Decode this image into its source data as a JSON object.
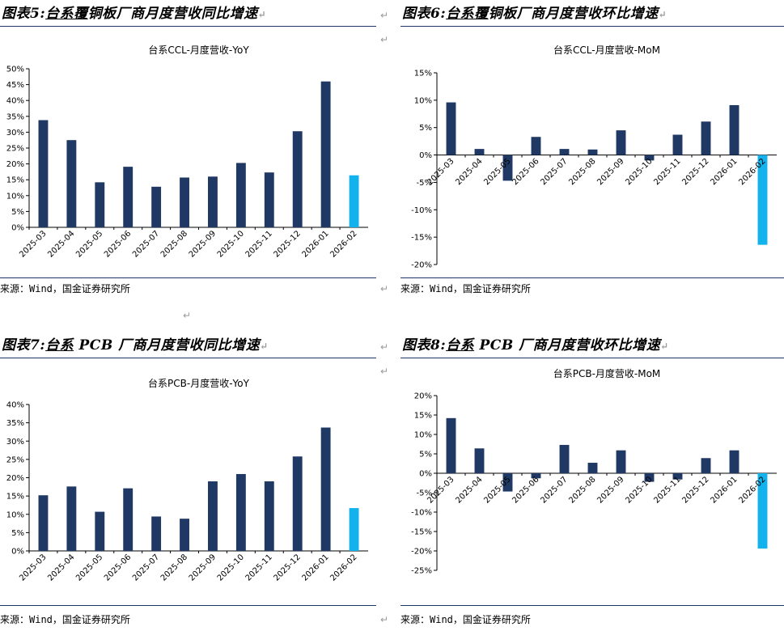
{
  "colors": {
    "bar": "#1f3864",
    "highlight": "#12b2ec",
    "rule": "#1f3864"
  },
  "return_mark": "↵",
  "panels": [
    {
      "title_prefix": "图表5:",
      "title_underlined": "台系覆",
      "title_rest": "铜板厂商月度营收同比增速",
      "source": "来源：Wind，国金证券研究所",
      "chart_data": {
        "type": "bar",
        "title": "台系CCL-月度营收-YoY",
        "categories": [
          "2025-03",
          "2025-04",
          "2025-05",
          "2025-06",
          "2025-07",
          "2025-08",
          "2025-09",
          "2025-10",
          "2025-11",
          "2025-12",
          "2026-01",
          "2026-02"
        ],
        "values": [
          33.8,
          27.5,
          14.2,
          19.1,
          12.8,
          15.7,
          16.0,
          20.3,
          17.3,
          30.3,
          46.0,
          16.4
        ],
        "ylim": [
          0,
          50
        ],
        "ytick_step": 5,
        "y_format": "percent",
        "highlight_index": 11,
        "grid": false
      }
    },
    {
      "title_prefix": "图表6:",
      "title_underlined": "台系覆",
      "title_rest": "铜板厂商月度营收环比增速",
      "source": "来源：Wind，国金证券研究所",
      "chart_data": {
        "type": "bar",
        "title": "台系CCL-月度营收-MoM",
        "categories": [
          "2025-03",
          "2025-04",
          "2025-05",
          "2025-06",
          "2025-07",
          "2025-08",
          "2025-09",
          "2025-10",
          "2025-11",
          "2025-12",
          "2026-01",
          "2026-02"
        ],
        "values": [
          9.6,
          1.1,
          -4.7,
          3.3,
          1.1,
          1.0,
          4.5,
          -1.0,
          3.7,
          6.1,
          9.1,
          -16.4
        ],
        "ylim": [
          -20,
          15
        ],
        "ytick_step": 5,
        "y_format": "percent",
        "highlight_index": 11,
        "grid": false
      }
    },
    {
      "title_prefix": "图表7:",
      "title_underlined": "台系",
      "title_rest": " PCB 厂商月度营收同比增速",
      "source": "来源：Wind，国金证券研究所",
      "chart_data": {
        "type": "bar",
        "title": "台系PCB-月度营收-YoY",
        "categories": [
          "2025-03",
          "2025-04",
          "2025-05",
          "2025-06",
          "2025-07",
          "2025-08",
          "2025-09",
          "2025-10",
          "2025-11",
          "2025-12",
          "2026-01",
          "2026-02"
        ],
        "values": [
          15.2,
          17.6,
          10.7,
          17.1,
          9.4,
          8.8,
          19.0,
          21.0,
          19.0,
          25.8,
          33.7,
          11.7
        ],
        "ylim": [
          0,
          40
        ],
        "ytick_step": 5,
        "y_format": "percent",
        "highlight_index": 11,
        "grid": false
      }
    },
    {
      "title_prefix": "图表8:",
      "title_underlined": "台系",
      "title_rest": " PCB 厂商月度营收环比增速",
      "source": "来源：Wind，国金证券研究所",
      "chart_data": {
        "type": "bar",
        "title": "台系PCB-月度营收-MoM",
        "categories": [
          "2025-03",
          "2025-04",
          "2025-05",
          "2025-06",
          "2025-07",
          "2025-08",
          "2025-09",
          "2025-10",
          "2025-11",
          "2025-12",
          "2026-01",
          "2026-02"
        ],
        "values": [
          14.2,
          6.4,
          -4.7,
          -1.3,
          7.3,
          2.7,
          5.9,
          -2.2,
          -1.6,
          3.9,
          5.9,
          -19.4
        ],
        "ylim": [
          -25,
          20
        ],
        "ytick_step": 5,
        "y_format": "percent",
        "highlight_index": 11,
        "grid": false
      }
    }
  ]
}
